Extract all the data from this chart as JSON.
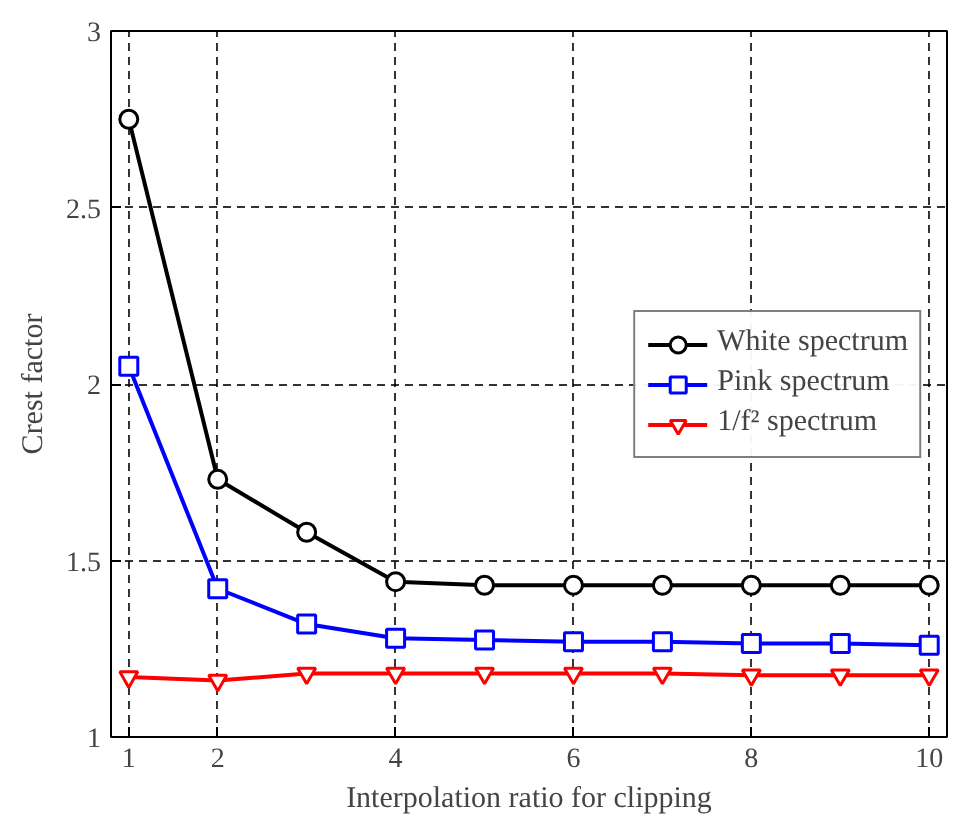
{
  "chart_data": {
    "type": "line",
    "xlabel": "Interpolation ratio for clipping",
    "ylabel": "Crest factor",
    "x": [
      1,
      2,
      3,
      4,
      5,
      6,
      7,
      8,
      9,
      10
    ],
    "xlim": [
      0.8,
      10.2
    ],
    "xticks": [
      1,
      2,
      4,
      6,
      8,
      10
    ],
    "ylim": [
      1,
      3
    ],
    "yticks": [
      1,
      1.5,
      2,
      2.5,
      3
    ],
    "grid": true,
    "legend": "right",
    "line_style": "solid",
    "series": [
      {
        "name": "White spectrum",
        "color": "#000000",
        "marker": "circle",
        "values": [
          2.75,
          1.73,
          1.58,
          1.44,
          1.43,
          1.43,
          1.43,
          1.43,
          1.43,
          1.43
        ]
      },
      {
        "name": "Pink spectrum",
        "color": "#0000ff",
        "marker": "square",
        "values": [
          2.05,
          1.42,
          1.32,
          1.28,
          1.275,
          1.27,
          1.27,
          1.265,
          1.265,
          1.26
        ]
      },
      {
        "name": "1/f² spectrum",
        "color": "#ff0000",
        "marker": "triangle",
        "values": [
          1.17,
          1.16,
          1.18,
          1.18,
          1.18,
          1.18,
          1.18,
          1.175,
          1.175,
          1.175
        ]
      }
    ]
  }
}
